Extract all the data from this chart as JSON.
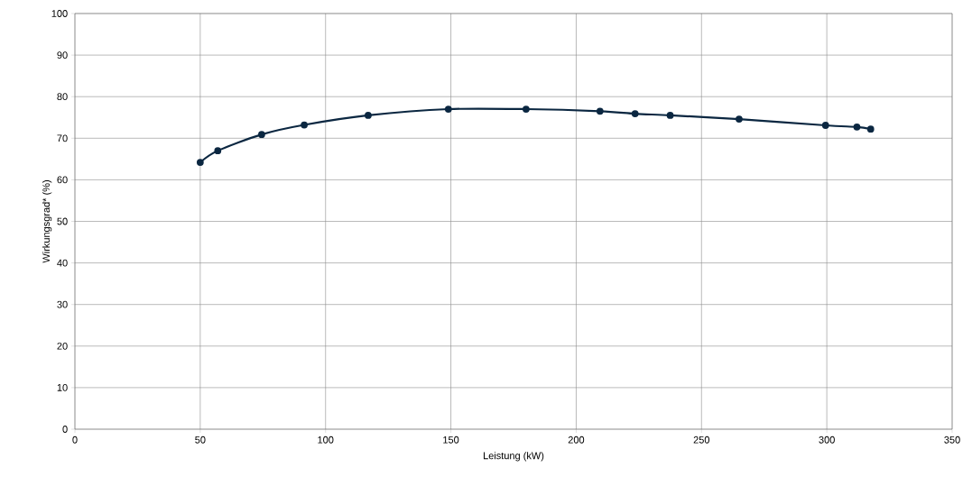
{
  "chart_data": {
    "type": "line",
    "xlabel": "Leistung (kW)",
    "ylabel": "Wirkungsgrad* (%)",
    "x": [
      50,
      57,
      74.5,
      91.5,
      117,
      149,
      180,
      209.5,
      223.5,
      237.5,
      265,
      299.5,
      312,
      317.5
    ],
    "series": [
      {
        "color": "#0b2741",
        "values": [
          64.2,
          67.0,
          70.9,
          73.2,
          75.5,
          77.0,
          77.0,
          76.5,
          75.9,
          75.5,
          74.6,
          73.1,
          72.7,
          72.2
        ]
      }
    ],
    "xlim": [
      0,
      350
    ],
    "xticks": [
      0,
      50,
      100,
      150,
      200,
      250,
      300,
      350
    ],
    "ylim": [
      0,
      100
    ],
    "yticks": [
      0,
      10,
      20,
      30,
      40,
      50,
      60,
      70,
      80,
      90,
      100
    ],
    "grid": true,
    "marker": "circle",
    "line_style": "solid"
  }
}
